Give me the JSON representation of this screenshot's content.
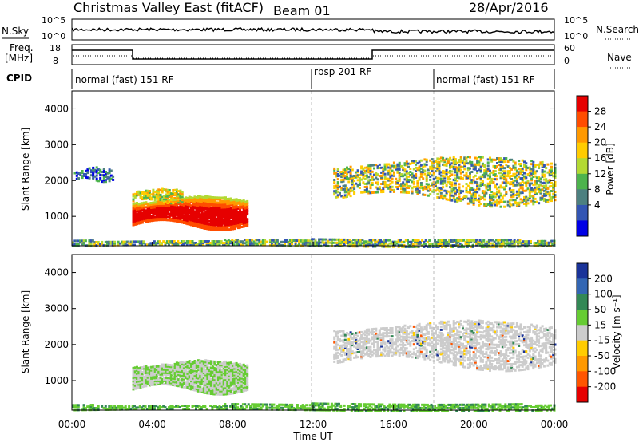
{
  "header": {
    "station": "Christmas Valley East (fitACF)",
    "beam": "Beam 01",
    "date": "28/Apr/2016"
  },
  "top_panels": {
    "nsky": {
      "left_label": "N.Sky",
      "right_label": "N.Search",
      "left_ticks": [
        "10^5",
        "10^0"
      ],
      "right_ticks": [
        "10^5",
        "10^0"
      ]
    },
    "freq": {
      "left_label_line1": "Freq.",
      "left_label_line2": "[MHz]",
      "right_label": "Nave",
      "left_ticks": [
        "18",
        "8"
      ],
      "right_ticks": [
        "60",
        "0"
      ]
    },
    "cpid": {
      "label": "CPID",
      "segments": [
        "normal (fast) 151 RF",
        "rbsp 201 RF",
        "normal (fast) 151 RF"
      ]
    }
  },
  "colorbars": {
    "power": {
      "label": "Power [dB]",
      "ticks": [
        "28",
        "24",
        "20",
        "16",
        "12",
        "8",
        "4"
      ],
      "colors": [
        "#e60000",
        "#ff4d00",
        "#ff9900",
        "#ffcc00",
        "#b3d933",
        "#4db34d",
        "#4d8080",
        "#3355b3",
        "#0000e6"
      ]
    },
    "velocity": {
      "label": "Velocity [m s⁻¹]",
      "ticks": [
        "200",
        "100",
        "50",
        "15",
        "-15",
        "-50",
        "-100",
        "-200"
      ],
      "colors": [
        "#1a3399",
        "#3366b3",
        "#338855",
        "#66cc33",
        "#cccccc",
        "#ffcc00",
        "#ff9900",
        "#ff5500",
        "#e60000"
      ]
    }
  },
  "chart_data": [
    {
      "type": "heatmap",
      "title": "Power",
      "ylabel": "Slant Range [km]",
      "xlabel": "",
      "xlim": [
        "00:00",
        "24:00"
      ],
      "ylim": [
        180,
        4500
      ],
      "y_ticks": [
        "4000",
        "3000",
        "2000",
        "1000"
      ],
      "regions": [
        {
          "name": "morning-ground-patch",
          "t_start": 3.0,
          "t_end": 8.7,
          "r_min": 650,
          "r_max": 1600,
          "peak_power_db": 28
        },
        {
          "name": "morning-upper-patch",
          "t_start": 3.0,
          "t_end": 5.5,
          "r_min": 1400,
          "r_max": 1800,
          "peak_power_db": 16
        },
        {
          "name": "early-arc",
          "t_start": 0.1,
          "t_end": 2.0,
          "r_min": 2000,
          "r_max": 2400,
          "peak_power_db": 12
        },
        {
          "name": "afternoon-arc",
          "t_start": 13.0,
          "t_end": 24.0,
          "r_min": 1300,
          "r_max": 2700,
          "peak_power_db": 18
        },
        {
          "name": "near-range-band",
          "t_start": 0.0,
          "t_end": 24.0,
          "r_min": 180,
          "r_max": 400,
          "peak_power_db": 12
        }
      ]
    },
    {
      "type": "heatmap",
      "title": "Velocity",
      "ylabel": "Slant Range [km]",
      "xlabel": "Time UT",
      "xlim": [
        "00:00",
        "24:00"
      ],
      "ylim": [
        180,
        4500
      ],
      "x_ticks": [
        "00:00",
        "04:00",
        "08:00",
        "12:00",
        "16:00",
        "20:00",
        "00:00"
      ],
      "y_ticks": [
        "4000",
        "3000",
        "2000",
        "1000"
      ],
      "regions": [
        {
          "name": "morning-ground-patch",
          "t_start": 3.0,
          "t_end": 8.7,
          "r_min": 650,
          "r_max": 1600,
          "velocity_ms": 10
        },
        {
          "name": "afternoon-arc",
          "t_start": 13.0,
          "t_end": 24.0,
          "r_min": 1300,
          "r_max": 2700,
          "velocity_ms": 0
        },
        {
          "name": "near-range-band",
          "t_start": 0.0,
          "t_end": 24.0,
          "r_min": 180,
          "r_max": 400,
          "velocity_ms": 20
        }
      ]
    }
  ]
}
